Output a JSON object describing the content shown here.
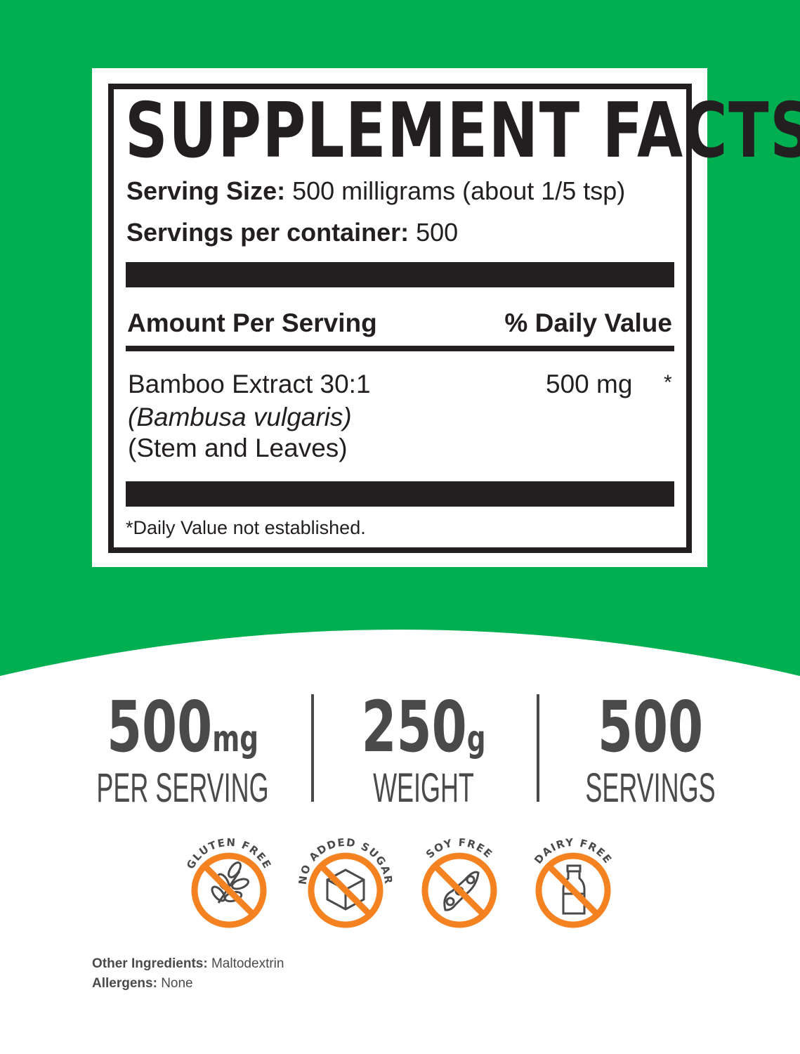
{
  "colors": {
    "background_green": "#00b050",
    "label_black": "#231f20",
    "stat_gray": "#4a4a4a",
    "badge_orange": "#f58220"
  },
  "facts": {
    "title": "SUPPLEMENT FACTS",
    "serving_size_label": "Serving Size:",
    "serving_size_value": "500 milligrams (about 1/5 tsp)",
    "servings_label": "Servings per container:",
    "servings_value": "500",
    "amount_header": "Amount Per Serving",
    "dv_header": "% Daily Value",
    "ingredient": {
      "name": "Bamboo Extract 30:1",
      "latin": "(Bambusa vulgaris)",
      "part": "(Stem and Leaves)",
      "amount": "500 mg",
      "dv": "*"
    },
    "footnote": "*Daily Value not established."
  },
  "stats": [
    {
      "value": "500",
      "unit": "mg",
      "label": "PER SERVING"
    },
    {
      "value": "250",
      "unit": "g",
      "label": "WEIGHT"
    },
    {
      "value": "500",
      "unit": "",
      "label": "SERVINGS"
    }
  ],
  "badges": [
    {
      "label": "GLUTEN FREE",
      "icon": "wheat-icon"
    },
    {
      "label": "NO ADDED SUGAR",
      "icon": "sugar-cube-icon"
    },
    {
      "label": "SOY FREE",
      "icon": "soybean-icon"
    },
    {
      "label": "DAIRY FREE",
      "icon": "milk-bottle-icon"
    }
  ],
  "other": {
    "ingredients_label": "Other Ingredients:",
    "ingredients_value": "Maltodextrin",
    "allergens_label": "Allergens:",
    "allergens_value": "None"
  }
}
